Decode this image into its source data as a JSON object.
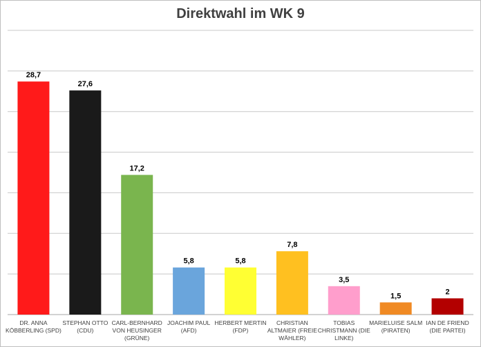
{
  "chart_data": {
    "type": "bar",
    "title": "Direktwahl im WK 9",
    "xlabel": "",
    "ylabel": "",
    "ylim": [
      0,
      35
    ],
    "grid": true,
    "legend": "none",
    "categories": [
      [
        "DR. ANNA",
        "KÖBBERLING (SPD)"
      ],
      [
        "STEPHAN OTTO",
        "(CDU)"
      ],
      [
        "CARL-BERNHARD",
        "VON HEUSINGER",
        "(GRÜNE)"
      ],
      [
        "JOACHIM PAUL",
        "(AFD)"
      ],
      [
        "HERBERT MERTIN",
        "(FDP)"
      ],
      [
        "CHRISTIAN",
        "ALTMAIER (FREIE",
        "WÄHLER)"
      ],
      [
        "TOBIAS",
        "CHRISTMANN (DIE",
        "LINKE)"
      ],
      [
        "MARIELUISE SALM",
        "(PIRATEN)"
      ],
      [
        "IAN DE FRIEND",
        "(DIE PARTEI)"
      ]
    ],
    "values": [
      28.7,
      27.6,
      17.2,
      5.8,
      5.8,
      7.8,
      3.5,
      1.5,
      2
    ],
    "value_labels": [
      "28,7",
      "27,6",
      "17,2",
      "5,8",
      "5,8",
      "7,8",
      "3,5",
      "1,5",
      "2"
    ],
    "colors": [
      "#ff1a1a",
      "#1a1a1a",
      "#7ab54e",
      "#6aa5dc",
      "#ffff33",
      "#ffc020",
      "#ff9ecc",
      "#f08a24",
      "#b30000"
    ]
  }
}
